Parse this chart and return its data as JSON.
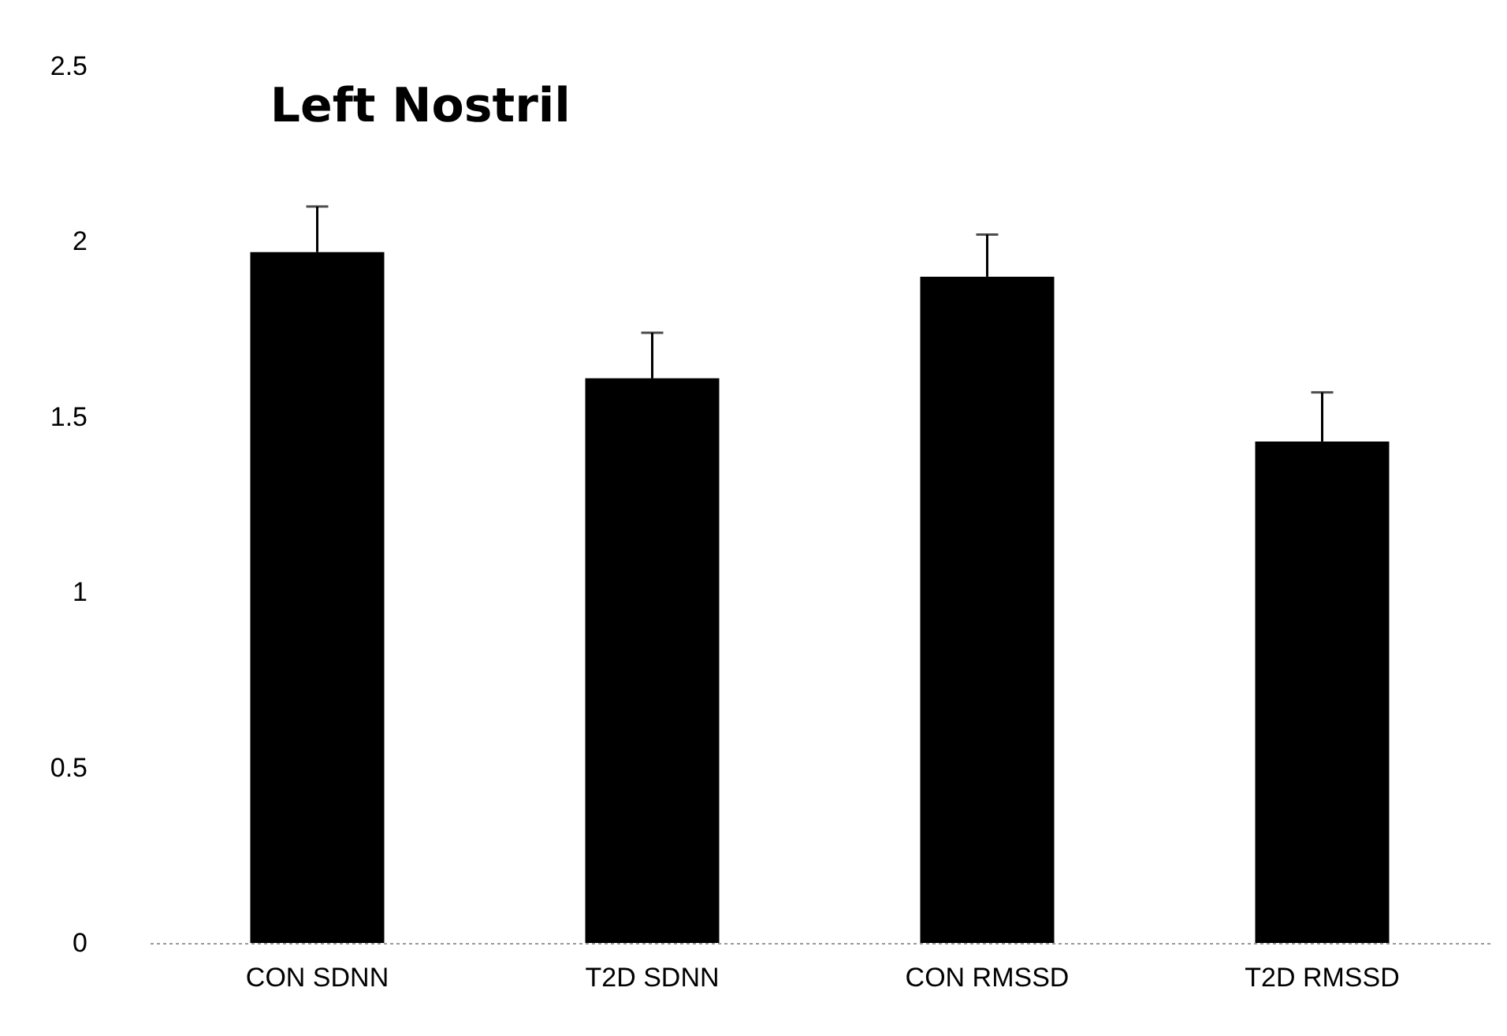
{
  "chart_data": {
    "type": "bar",
    "title": "Left Nostril",
    "categories": [
      "CON SDNN",
      "T2D SDNN",
      "CON RMSSD",
      "T2D RMSSD"
    ],
    "values": [
      1.97,
      1.61,
      1.9,
      1.43
    ],
    "errors": [
      [
        1.97,
        2.1
      ],
      [
        1.61,
        1.74
      ],
      [
        1.9,
        2.02
      ],
      [
        1.43,
        1.57
      ]
    ],
    "color": "#000000",
    "ylim": [
      0,
      2.5
    ],
    "yticks": [
      0,
      0.5,
      1,
      1.5,
      2,
      2.5
    ],
    "grid": false
  }
}
